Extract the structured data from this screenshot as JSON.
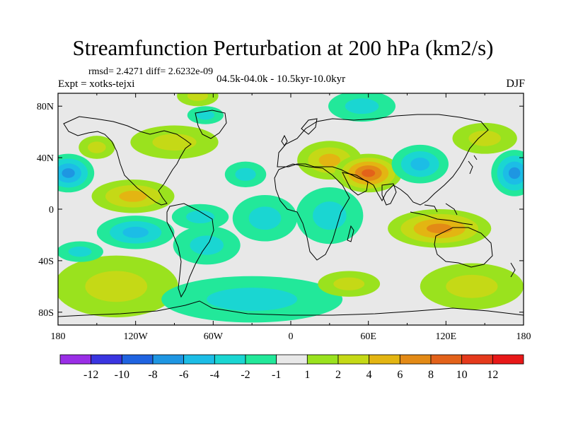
{
  "title": "Streamfunction Perturbation at 200 hPa (km2/s)",
  "stats": "rmsd= 2.4271 diff= 2.6232e-09",
  "experiment": "Expt = xotks-tejxi",
  "period": "04.5k-04.0k - 10.5kyr-10.0kyr",
  "season": "DJF",
  "colors": {
    "background": "#ffffff",
    "land_outline": "#000000",
    "neutral": "#e8e8e8"
  },
  "chart_data": {
    "type": "heatmap",
    "title": "Streamfunction Perturbation at 200 hPa (km2/s)",
    "xlim": [
      -180,
      180
    ],
    "ylim": [
      -90,
      90
    ],
    "x_ticks": [
      {
        "value": -180,
        "label": "180"
      },
      {
        "value": -120,
        "label": "120W"
      },
      {
        "value": -60,
        "label": "60W"
      },
      {
        "value": 0,
        "label": "0"
      },
      {
        "value": 60,
        "label": "60E"
      },
      {
        "value": 120,
        "label": "120E"
      },
      {
        "value": 180,
        "label": "180"
      }
    ],
    "y_ticks": [
      {
        "value": 80,
        "label": "80N"
      },
      {
        "value": 40,
        "label": "40N"
      },
      {
        "value": 0,
        "label": "0"
      },
      {
        "value": -40,
        "label": "40S"
      },
      {
        "value": -80,
        "label": "80S"
      }
    ],
    "colorbar": {
      "levels": [
        "-12",
        "-10",
        "-8",
        "-6",
        "-4",
        "-2",
        "-1",
        "1",
        "2",
        "4",
        "6",
        "8",
        "10",
        "12"
      ],
      "colors": [
        "#9a2ee6",
        "#3a35e0",
        "#1f63e0",
        "#1e96e2",
        "#1cbde6",
        "#1ad6d2",
        "#22e89a",
        "#e8e8e8",
        "#9ae21e",
        "#c5d916",
        "#e3b512",
        "#e38a16",
        "#e3621a",
        "#e53a1c",
        "#e81818"
      ]
    },
    "blobs": [
      {
        "lon": -172,
        "lat": 28,
        "rx": 20,
        "ry": 15,
        "value": -6.5
      },
      {
        "lon": -150,
        "lat": 48,
        "rx": 14,
        "ry": 9,
        "value": 3
      },
      {
        "lon": -122,
        "lat": 10,
        "rx": 32,
        "ry": 13,
        "value": 5.5
      },
      {
        "lon": -120,
        "lat": -18,
        "rx": 30,
        "ry": 13,
        "value": -5
      },
      {
        "lon": -135,
        "lat": -60,
        "rx": 48,
        "ry": 24,
        "value": 3.5
      },
      {
        "lon": -163,
        "lat": -33,
        "rx": 18,
        "ry": 8,
        "value": -3
      },
      {
        "lon": -90,
        "lat": 52,
        "rx": 34,
        "ry": 13,
        "value": 2
      },
      {
        "lon": -72,
        "lat": 88,
        "rx": 16,
        "ry": 8,
        "value": 2
      },
      {
        "lon": -66,
        "lat": 73,
        "rx": 14,
        "ry": 7,
        "value": -3
      },
      {
        "lon": -35,
        "lat": 27,
        "rx": 16,
        "ry": 10,
        "value": -3.5
      },
      {
        "lon": -20,
        "lat": -7,
        "rx": 25,
        "ry": 18,
        "value": -3
      },
      {
        "lon": -65,
        "lat": -28,
        "rx": 26,
        "ry": 15,
        "value": -3
      },
      {
        "lon": -70,
        "lat": -6,
        "rx": 22,
        "ry": 10,
        "value": -3
      },
      {
        "lon": -30,
        "lat": -70,
        "rx": 70,
        "ry": 18,
        "value": -3.5
      },
      {
        "lon": 30,
        "lat": 38,
        "rx": 25,
        "ry": 15,
        "value": 5
      },
      {
        "lon": 60,
        "lat": 28,
        "rx": 26,
        "ry": 15,
        "value": 8.5
      },
      {
        "lon": 55,
        "lat": 80,
        "rx": 26,
        "ry": 12,
        "value": -3
      },
      {
        "lon": 30,
        "lat": -5,
        "rx": 26,
        "ry": 22,
        "value": -3
      },
      {
        "lon": 100,
        "lat": 35,
        "rx": 22,
        "ry": 15,
        "value": -6
      },
      {
        "lon": 115,
        "lat": -15,
        "rx": 40,
        "ry": 15,
        "value": 6
      },
      {
        "lon": 150,
        "lat": 55,
        "rx": 25,
        "ry": 12,
        "value": 2
      },
      {
        "lon": 173,
        "lat": 28,
        "rx": 18,
        "ry": 18,
        "value": -6.5
      },
      {
        "lon": 140,
        "lat": -60,
        "rx": 40,
        "ry": 18,
        "value": 2.5
      },
      {
        "lon": 45,
        "lat": -58,
        "rx": 24,
        "ry": 10,
        "value": 2
      }
    ]
  }
}
